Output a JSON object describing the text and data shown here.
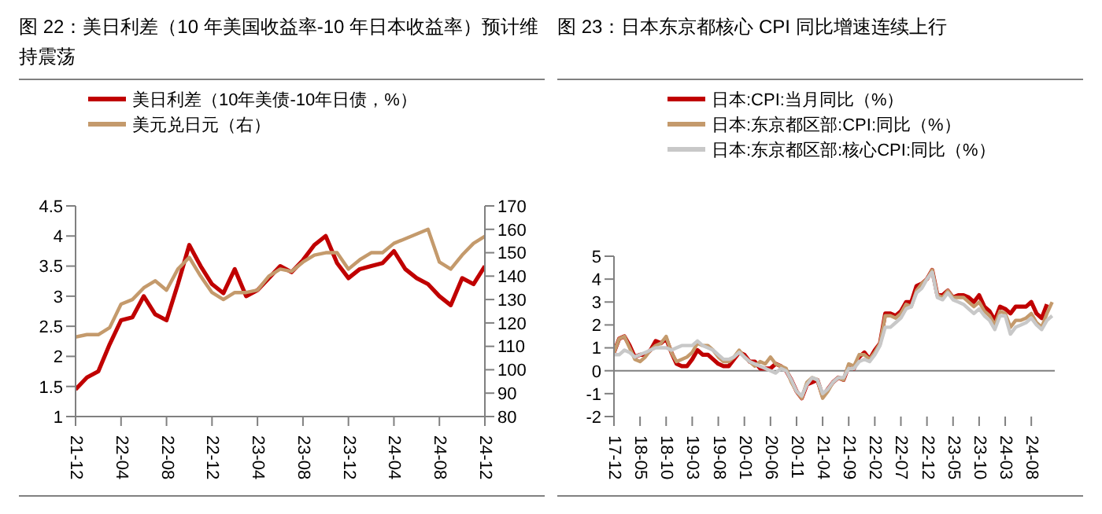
{
  "chart_data": [
    {
      "type": "line",
      "title": "图 22：美日利差（10 年美国收益率-10 年日本收益率）预计维持震荡",
      "categories": [
        "21-12",
        null,
        null,
        null,
        "22-04",
        null,
        null,
        null,
        "22-08",
        null,
        null,
        null,
        "22-12",
        null,
        null,
        null,
        "23-04",
        null,
        null,
        null,
        "23-08",
        null,
        null,
        null,
        "23-12",
        null,
        null,
        null,
        "24-04",
        null,
        null,
        null,
        "24-08",
        null,
        null,
        null,
        "24-12"
      ],
      "series": [
        {
          "name": "美日利差（10年美债-10年日债，%）",
          "color": "#c00000",
          "values": [
            1.45,
            1.65,
            1.75,
            2.2,
            2.6,
            2.65,
            3.0,
            2.7,
            2.6,
            3.2,
            3.85,
            3.5,
            3.2,
            3.05,
            3.45,
            3.0,
            3.1,
            3.3,
            3.5,
            3.4,
            3.6,
            3.85,
            4.0,
            3.55,
            3.3,
            3.45,
            3.5,
            3.55,
            3.75,
            3.45,
            3.3,
            3.2,
            3.0,
            2.85,
            3.3,
            3.2,
            3.5
          ]
        },
        {
          "name": "美元兑日元（右）",
          "color": "#c49a6c",
          "axis": "y2",
          "values": [
            114,
            115,
            115,
            118,
            128,
            130,
            135,
            138,
            134,
            143,
            148,
            140,
            133,
            130,
            133,
            133,
            134,
            140,
            143,
            142,
            146,
            149,
            150,
            150,
            143,
            147,
            150,
            150,
            154,
            156,
            158,
            160,
            146,
            143,
            149,
            154,
            157
          ]
        }
      ],
      "ylim": [
        1,
        4.5
      ],
      "yticks": [
        1,
        1.5,
        2,
        2.5,
        3,
        3.5,
        4,
        4.5
      ],
      "y2lim": [
        80,
        170
      ],
      "y2ticks": [
        80,
        90,
        100,
        110,
        120,
        130,
        140,
        150,
        160,
        170
      ],
      "legend": "top left"
    },
    {
      "type": "line",
      "title": "图 23：日本东京都核心 CPI 同比增速连续上行",
      "categories": [
        "17-12",
        null,
        null,
        null,
        null,
        "18-05",
        null,
        null,
        null,
        null,
        "18-10",
        null,
        null,
        null,
        null,
        "19-03",
        null,
        null,
        null,
        null,
        "19-08",
        null,
        null,
        null,
        null,
        "20-01",
        null,
        null,
        null,
        null,
        "20-06",
        null,
        null,
        null,
        null,
        "20-11",
        null,
        null,
        null,
        null,
        "21-04",
        null,
        null,
        null,
        null,
        "21-09",
        null,
        null,
        null,
        null,
        "22-02",
        null,
        null,
        null,
        null,
        "22-07",
        null,
        null,
        null,
        null,
        "22-12",
        null,
        null,
        null,
        null,
        "23-05",
        null,
        null,
        null,
        null,
        "23-10",
        null,
        null,
        null,
        null,
        "24-03",
        null,
        null,
        null,
        null,
        "24-08",
        null,
        null,
        null,
        null
      ],
      "series": [
        {
          "name": "日本:CPI:当月同比（%）",
          "color": "#c00000",
          "values": [
            0.8,
            1.4,
            1.5,
            1.1,
            0.6,
            0.7,
            0.7,
            0.9,
            1.3,
            1.2,
            1.4,
            0.8,
            0.3,
            0.2,
            0.2,
            0.5,
            0.9,
            0.7,
            0.7,
            0.5,
            0.3,
            0.2,
            0.2,
            0.5,
            0.8,
            0.7,
            0.4,
            0.4,
            0.1,
            0.1,
            0.1,
            0.3,
            0.2,
            0.0,
            -0.4,
            -0.9,
            -1.2,
            -0.6,
            -0.5,
            -0.4,
            -1.1,
            -0.8,
            -0.5,
            -0.3,
            -0.4,
            0.2,
            0.1,
            0.6,
            0.8,
            0.5,
            0.9,
            1.2,
            2.5,
            2.5,
            2.4,
            2.6,
            3.0,
            3.0,
            3.7,
            3.8,
            4.0,
            4.4,
            3.3,
            3.3,
            3.5,
            3.2,
            3.3,
            3.3,
            3.2,
            3.0,
            3.3,
            2.8,
            2.6,
            2.2,
            2.8,
            2.7,
            2.5,
            2.8,
            2.8,
            2.8,
            3.0,
            2.5,
            2.3,
            2.9,
            null
          ]
        },
        {
          "name": "日本:东京都区部:CPI:同比（%）",
          "color": "#c49a6c",
          "values": [
            0.8,
            1.4,
            1.5,
            1.0,
            0.5,
            0.4,
            0.6,
            0.9,
            1.1,
            1.2,
            1.5,
            0.8,
            0.4,
            0.5,
            0.6,
            0.8,
            1.2,
            1.1,
            1.1,
            0.9,
            0.6,
            0.4,
            0.4,
            0.6,
            0.9,
            0.6,
            0.4,
            0.2,
            0.4,
            0.3,
            0.6,
            0.3,
            0.2,
            0.1,
            -0.5,
            -0.9,
            -1.2,
            -0.5,
            -0.3,
            -0.4,
            -1.2,
            -0.9,
            -0.5,
            -0.3,
            -0.4,
            0.3,
            0.2,
            0.7,
            0.7,
            0.5,
            0.8,
            1.2,
            2.4,
            2.4,
            2.3,
            2.5,
            2.9,
            2.8,
            3.5,
            3.8,
            4.0,
            4.4,
            3.3,
            3.2,
            3.5,
            3.2,
            3.2,
            3.2,
            3.0,
            2.8,
            3.0,
            2.6,
            2.4,
            2.0,
            2.6,
            2.5,
            1.9,
            2.2,
            2.2,
            2.3,
            2.5,
            2.1,
            1.9,
            2.5,
            3.0
          ]
        },
        {
          "name": "日本:东京都区部:核心CPI:同比（%）",
          "color": "#c8c8c8",
          "values": [
            0.7,
            0.7,
            0.9,
            0.8,
            0.6,
            0.7,
            0.8,
            0.9,
            1.0,
            1.0,
            1.0,
            0.9,
            1.0,
            1.1,
            1.1,
            1.1,
            1.3,
            1.1,
            1.0,
            0.9,
            0.7,
            0.5,
            0.5,
            0.6,
            0.8,
            0.6,
            0.4,
            0.3,
            0.2,
            0.1,
            0.0,
            -0.1,
            0.1,
            0.0,
            -0.4,
            -0.9,
            -1.1,
            -0.6,
            -0.3,
            -0.4,
            -1.0,
            -0.8,
            -0.5,
            -0.3,
            -0.3,
            0.1,
            0.1,
            0.4,
            0.5,
            0.4,
            0.7,
            1.1,
            1.9,
            1.9,
            2.1,
            2.3,
            2.7,
            2.8,
            3.4,
            3.6,
            4.0,
            4.3,
            3.2,
            3.1,
            3.4,
            3.1,
            3.0,
            2.9,
            2.7,
            2.5,
            2.7,
            2.4,
            2.2,
            1.8,
            2.4,
            2.4,
            1.6,
            1.9,
            2.0,
            2.1,
            2.3,
            2.0,
            1.8,
            2.2,
            2.4
          ]
        }
      ],
      "ylim": [
        -2,
        5
      ],
      "yticks": [
        -2,
        -1,
        0,
        1,
        2,
        3,
        4,
        5
      ],
      "ref_lines": [
        {
          "axis": "y",
          "value": 0,
          "color": "#808080"
        }
      ],
      "legend": "top"
    }
  ]
}
